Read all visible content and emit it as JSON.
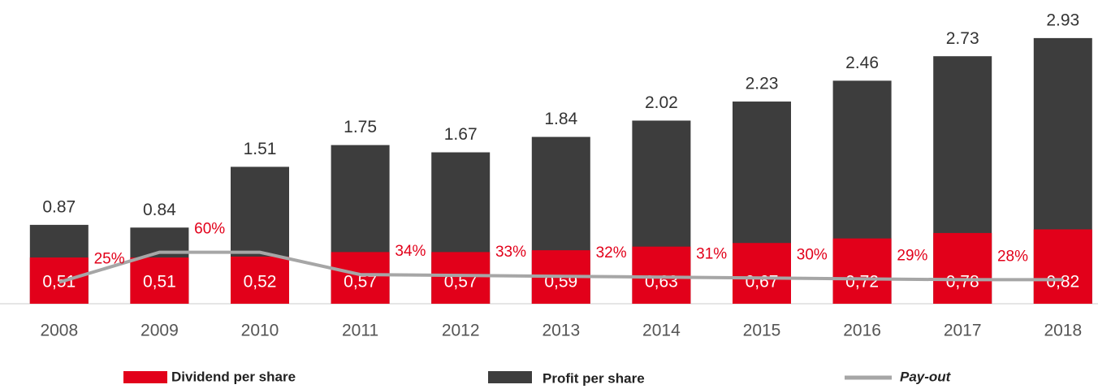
{
  "chart_data": {
    "type": "bar",
    "categories": [
      "2008",
      "2009",
      "2010",
      "2011",
      "2012",
      "2013",
      "2014",
      "2015",
      "2016",
      "2017",
      "2018"
    ],
    "series": [
      {
        "name": "Dividend per share",
        "color": "#e2001a",
        "values": [
          0.51,
          0.51,
          0.52,
          0.57,
          0.57,
          0.59,
          0.63,
          0.67,
          0.72,
          0.78,
          0.82
        ],
        "value_labels": [
          "0,51",
          "0,51",
          "0,52",
          "0,57",
          "0,57",
          "0,59",
          "0,63",
          "0,67",
          "0,72",
          "0,78",
          "0,82"
        ]
      },
      {
        "name": "Profit per share",
        "color": "#3d3d3d",
        "values": [
          0.87,
          0.84,
          1.51,
          1.75,
          1.67,
          1.84,
          2.02,
          2.23,
          2.46,
          2.73,
          2.93
        ]
      },
      {
        "name": "Pay-out",
        "color": "#a6a6a6",
        "type": "line",
        "axis": "y2",
        "values": [
          25,
          60,
          60,
          34,
          33,
          32,
          31,
          30,
          29,
          28,
          28
        ],
        "value_labels": [
          "25%",
          "60%",
          null,
          "34%",
          "33%",
          "32%",
          "31%",
          "30%",
          "29%",
          "28%",
          "28%"
        ]
      }
    ],
    "ylim": [
      0,
      3.35
    ],
    "y2lim": [
      0,
      354
    ]
  }
}
